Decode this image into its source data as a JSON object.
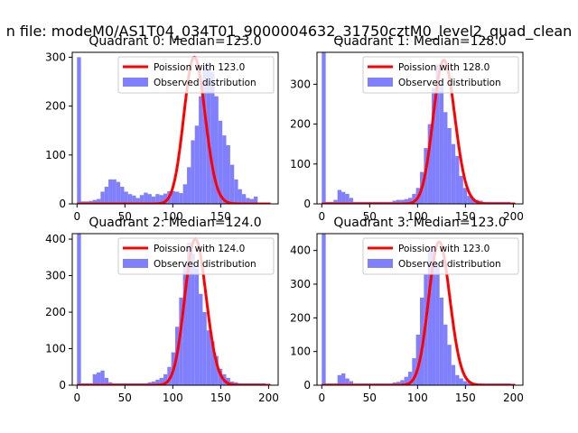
{
  "figure": {
    "suptitle": "n file: modeM0/AS1T04_034T01_9000004632_31750cztM0_level2_quad_clean"
  },
  "colors": {
    "poisson": "#ff0000",
    "hist": "#8080ff",
    "spine": "#000000",
    "background": "#ffffff"
  },
  "chart_data": [
    {
      "type": "bar",
      "title": "Quadrant 0: Median=123.0",
      "median": 123.0,
      "xlim": [
        -5,
        210
      ],
      "ylim": [
        0,
        310
      ],
      "xticks": [
        0,
        50,
        100,
        150
      ],
      "yticks": [
        0,
        100,
        200,
        300
      ],
      "legend_position": "top-right",
      "legend": [
        {
          "label": "Poission with 123.0",
          "kind": "line"
        },
        {
          "label": "Observed distribution",
          "kind": "patch"
        }
      ],
      "bins": {
        "start": 0,
        "width": 4.1
      },
      "values": [
        300,
        5,
        5,
        6,
        8,
        10,
        25,
        35,
        50,
        50,
        45,
        35,
        25,
        20,
        17,
        12,
        18,
        23,
        20,
        15,
        20,
        18,
        21,
        26,
        26,
        25,
        22,
        40,
        75,
        130,
        160,
        220,
        280,
        290,
        270,
        220,
        170,
        140,
        120,
        80,
        50,
        30,
        20,
        12,
        10,
        15
      ],
      "poisson_peak": 300
    },
    {
      "type": "bar",
      "title": "Quadrant 1: Median=128.0",
      "median": 128.0,
      "xlim": [
        -5,
        210
      ],
      "ylim": [
        0,
        380
      ],
      "xticks": [
        0,
        50,
        100,
        150,
        200
      ],
      "yticks": [
        0,
        100,
        200,
        300
      ],
      "legend_position": "top-right",
      "legend": [
        {
          "label": "Poission with 128.0",
          "kind": "line"
        },
        {
          "label": "Observed distribution",
          "kind": "patch"
        }
      ],
      "bins": {
        "start": 0,
        "width": 4.1
      },
      "values": [
        380,
        5,
        5,
        10,
        35,
        30,
        25,
        15,
        5,
        5,
        5,
        5,
        5,
        5,
        5,
        5,
        5,
        5,
        8,
        10,
        10,
        12,
        15,
        25,
        40,
        80,
        140,
        200,
        290,
        350,
        300,
        230,
        190,
        150,
        120,
        70,
        40,
        20,
        12,
        10,
        8,
        5,
        5,
        5,
        5,
        5,
        5,
        5
      ],
      "poisson_peak": 360
    },
    {
      "type": "bar",
      "title": "Quadrant 2: Median=124.0",
      "median": 124.0,
      "xlim": [
        -5,
        210
      ],
      "ylim": [
        0,
        415
      ],
      "xticks": [
        0,
        50,
        100,
        150,
        200
      ],
      "yticks": [
        0,
        100,
        200,
        300,
        400
      ],
      "legend_position": "top-right",
      "legend": [
        {
          "label": "Poission with 124.0",
          "kind": "line"
        },
        {
          "label": "Observed distribution",
          "kind": "patch"
        }
      ],
      "bins": {
        "start": 0,
        "width": 4.1
      },
      "values": [
        415,
        5,
        5,
        5,
        30,
        35,
        40,
        20,
        8,
        5,
        5,
        5,
        5,
        5,
        5,
        5,
        5,
        5,
        8,
        10,
        15,
        20,
        30,
        50,
        90,
        160,
        240,
        330,
        390,
        360,
        320,
        250,
        200,
        150,
        120,
        80,
        45,
        30,
        20,
        10,
        8,
        5,
        5,
        5,
        5,
        5,
        5,
        5
      ],
      "poisson_peak": 400
    },
    {
      "type": "bar",
      "title": "Quadrant 3: Median=123.0",
      "median": 123.0,
      "xlim": [
        -5,
        210
      ],
      "ylim": [
        0,
        450
      ],
      "xticks": [
        0,
        50,
        100,
        150,
        200
      ],
      "yticks": [
        0,
        100,
        200,
        300,
        400
      ],
      "legend_position": "top-right",
      "legend": [
        {
          "label": "Poission with 123.0",
          "kind": "line"
        },
        {
          "label": "Observed distribution",
          "kind": "patch"
        }
      ],
      "bins": {
        "start": 0,
        "width": 4.1
      },
      "values": [
        450,
        5,
        5,
        5,
        30,
        35,
        20,
        12,
        5,
        5,
        5,
        5,
        5,
        5,
        5,
        5,
        5,
        5,
        8,
        10,
        15,
        25,
        40,
        80,
        150,
        260,
        330,
        400,
        410,
        360,
        260,
        180,
        120,
        60,
        30,
        20,
        12,
        8,
        5,
        5,
        5,
        5,
        5,
        5,
        5,
        5,
        5,
        5
      ],
      "poisson_peak": 425
    }
  ]
}
